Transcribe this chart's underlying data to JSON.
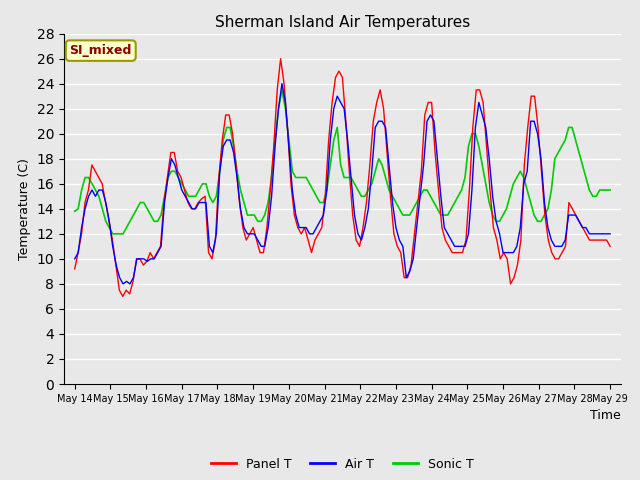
{
  "title": "Sherman Island Air Temperatures",
  "xlabel": "Time",
  "ylabel": "Temperature (C)",
  "annotation": "SI_mixed",
  "annotation_color": "#8B0000",
  "annotation_bg": "#FFFFCC",
  "ylim": [
    0,
    28
  ],
  "yticks": [
    0,
    2,
    4,
    6,
    8,
    10,
    12,
    14,
    16,
    18,
    20,
    22,
    24,
    26,
    28
  ],
  "xtick_labels": [
    "May 14",
    "May 15",
    "May 16",
    "May 17",
    "May 18",
    "May 19",
    "May 20",
    "May 21",
    "May 22",
    "May 23",
    "May 24",
    "May 25",
    "May 26",
    "May 27",
    "May 28",
    "May 29"
  ],
  "line_colors": [
    "red",
    "blue",
    "#00CC00"
  ],
  "legend_labels": [
    "Panel T",
    "Air T",
    "Sonic T"
  ],
  "bg_color": "#E8E8E8",
  "grid_color": "white",
  "panel_t": [
    9.2,
    10.5,
    12.0,
    14.5,
    15.5,
    17.5,
    17.0,
    16.5,
    16.0,
    14.5,
    13.0,
    11.5,
    9.5,
    7.5,
    7.0,
    7.5,
    7.2,
    8.2,
    10.0,
    10.0,
    9.5,
    9.8,
    10.5,
    10.0,
    10.5,
    11.0,
    14.5,
    16.5,
    18.5,
    18.5,
    17.0,
    16.5,
    15.5,
    14.5,
    14.0,
    14.0,
    14.5,
    14.8,
    15.0,
    10.5,
    10.0,
    11.5,
    16.5,
    19.5,
    21.5,
    21.5,
    20.0,
    17.5,
    14.5,
    12.5,
    11.5,
    12.0,
    12.5,
    11.5,
    10.5,
    10.5,
    12.5,
    15.5,
    19.0,
    23.5,
    26.0,
    24.0,
    20.5,
    16.0,
    13.5,
    12.5,
    12.0,
    12.5,
    11.5,
    10.5,
    11.5,
    12.0,
    12.5,
    15.0,
    19.5,
    22.5,
    24.5,
    25.0,
    24.5,
    21.0,
    17.0,
    13.5,
    11.5,
    11.0,
    12.5,
    14.5,
    17.5,
    21.0,
    22.5,
    23.5,
    22.0,
    18.5,
    15.0,
    12.0,
    11.0,
    10.5,
    8.5,
    8.5,
    9.5,
    12.0,
    14.5,
    17.0,
    21.5,
    22.5,
    22.5,
    18.5,
    15.5,
    12.5,
    11.5,
    11.0,
    10.5,
    10.5,
    10.5,
    10.5,
    11.5,
    15.5,
    20.5,
    23.5,
    23.5,
    22.5,
    19.0,
    15.5,
    12.5,
    11.5,
    10.0,
    10.5,
    10.0,
    8.0,
    8.5,
    9.5,
    11.5,
    17.5,
    20.5,
    23.0,
    23.0,
    20.5,
    17.0,
    13.5,
    11.5,
    10.5,
    10.0,
    10.0,
    10.5,
    11.0,
    14.5,
    14.0,
    13.5,
    13.0,
    12.5,
    12.0,
    11.5,
    11.5,
    11.5,
    11.5,
    11.5,
    11.5,
    11.0
  ],
  "air_t": [
    10.0,
    10.5,
    12.5,
    14.0,
    15.0,
    15.5,
    15.0,
    15.5,
    15.5,
    14.5,
    13.0,
    11.0,
    9.5,
    8.5,
    8.0,
    8.2,
    8.0,
    8.5,
    10.0,
    10.0,
    10.0,
    9.8,
    10.0,
    10.0,
    10.5,
    11.0,
    14.5,
    16.5,
    18.0,
    17.5,
    16.5,
    15.5,
    15.0,
    14.5,
    14.0,
    14.0,
    14.5,
    14.5,
    14.5,
    11.0,
    10.5,
    12.0,
    17.0,
    19.0,
    19.5,
    19.5,
    18.5,
    16.5,
    14.0,
    12.5,
    12.0,
    12.0,
    12.0,
    11.5,
    11.0,
    11.0,
    12.5,
    15.0,
    19.0,
    22.0,
    24.0,
    22.5,
    19.0,
    15.5,
    13.5,
    12.5,
    12.5,
    12.5,
    12.0,
    12.0,
    12.5,
    13.0,
    13.5,
    15.5,
    19.5,
    22.0,
    23.0,
    22.5,
    22.0,
    19.5,
    16.5,
    13.5,
    12.0,
    11.5,
    12.5,
    14.0,
    17.0,
    20.5,
    21.0,
    21.0,
    20.5,
    17.5,
    14.5,
    12.5,
    11.5,
    11.0,
    8.5,
    9.0,
    10.0,
    12.5,
    15.0,
    17.5,
    21.0,
    21.5,
    21.0,
    18.0,
    15.0,
    12.5,
    12.0,
    11.5,
    11.0,
    11.0,
    11.0,
    11.0,
    12.0,
    15.5,
    20.5,
    22.5,
    21.5,
    20.5,
    18.0,
    15.0,
    13.0,
    12.0,
    10.5,
    10.5,
    10.5,
    10.5,
    11.0,
    12.5,
    16.0,
    17.0,
    21.0,
    21.0,
    20.0,
    18.0,
    14.5,
    12.5,
    11.5,
    11.0,
    11.0,
    11.0,
    11.5,
    13.5,
    13.5,
    13.5,
    13.0,
    12.5,
    12.5,
    12.0,
    12.0,
    12.0,
    12.0,
    12.0,
    12.0,
    12.0
  ],
  "sonic_t": [
    13.8,
    14.0,
    15.5,
    16.5,
    16.5,
    16.0,
    15.5,
    15.0,
    14.0,
    13.0,
    12.5,
    12.0,
    12.0,
    12.0,
    12.0,
    12.5,
    13.0,
    13.5,
    14.0,
    14.5,
    14.5,
    14.0,
    13.5,
    13.0,
    13.0,
    13.5,
    15.0,
    16.5,
    17.0,
    17.0,
    16.5,
    16.0,
    15.5,
    15.0,
    15.0,
    15.0,
    15.5,
    16.0,
    16.0,
    15.0,
    14.5,
    15.0,
    17.0,
    19.5,
    20.5,
    20.5,
    19.0,
    17.0,
    15.5,
    14.5,
    13.5,
    13.5,
    13.5,
    13.0,
    13.0,
    13.5,
    14.5,
    16.5,
    19.5,
    22.0,
    23.5,
    22.0,
    19.5,
    17.0,
    16.5,
    16.5,
    16.5,
    16.5,
    16.0,
    15.5,
    15.0,
    14.5,
    14.5,
    15.5,
    17.5,
    19.5,
    20.5,
    17.5,
    16.5,
    16.5,
    16.5,
    16.0,
    15.5,
    15.0,
    15.0,
    15.5,
    16.0,
    17.0,
    18.0,
    17.5,
    16.5,
    15.5,
    15.0,
    14.5,
    14.0,
    13.5,
    13.5,
    13.5,
    14.0,
    14.5,
    15.0,
    15.5,
    15.5,
    15.0,
    14.5,
    14.0,
    13.5,
    13.5,
    13.5,
    14.0,
    14.5,
    15.0,
    15.5,
    16.5,
    19.0,
    20.0,
    20.0,
    19.0,
    17.5,
    16.0,
    14.5,
    13.5,
    13.0,
    13.0,
    13.5,
    14.0,
    15.0,
    16.0,
    16.5,
    17.0,
    16.5,
    15.5,
    14.5,
    13.5,
    13.0,
    13.0,
    13.5,
    14.0,
    15.5,
    18.0,
    18.5,
    19.0,
    19.5,
    20.5,
    20.5,
    19.5,
    18.5,
    17.5,
    16.5,
    15.5,
    15.0,
    15.0,
    15.5,
    15.5,
    15.5,
    15.5
  ]
}
